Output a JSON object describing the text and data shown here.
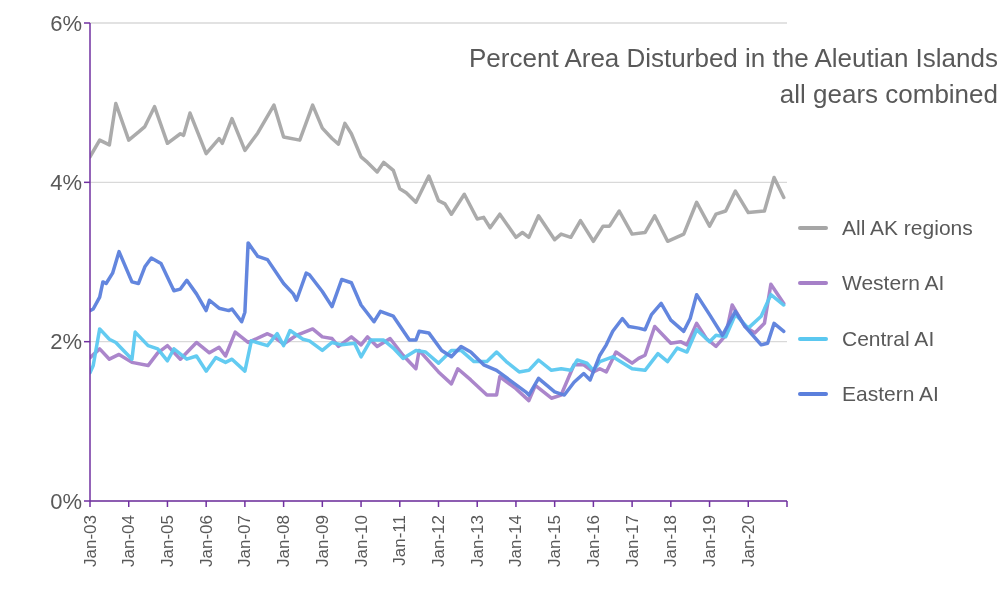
{
  "chart_data": {
    "type": "line",
    "title": "Percent Area Disturbed in the Aleutian Islands",
    "subtitle": "all gears combined",
    "xlim": [
      "2003-01",
      "2021-01"
    ],
    "xticks": [
      {
        "value": "2003-01",
        "label": "Jan-03"
      },
      {
        "value": "2004-01",
        "label": "Jan-04"
      },
      {
        "value": "2005-01",
        "label": "Jan-05"
      },
      {
        "value": "2006-01",
        "label": "Jan-06"
      },
      {
        "value": "2007-01",
        "label": "Jan-07"
      },
      {
        "value": "2008-01",
        "label": "Jan-08"
      },
      {
        "value": "2009-01",
        "label": "Jan-09"
      },
      {
        "value": "2010-01",
        "label": "Jan-10"
      },
      {
        "value": "2011-01",
        "label": "Jan-11"
      },
      {
        "value": "2012-01",
        "label": "Jan-12"
      },
      {
        "value": "2013-01",
        "label": "Jan-13"
      },
      {
        "value": "2014-01",
        "label": "Jan-14"
      },
      {
        "value": "2015-01",
        "label": "Jan-15"
      },
      {
        "value": "2016-01",
        "label": "Jan-16"
      },
      {
        "value": "2017-01",
        "label": "Jan-17"
      },
      {
        "value": "2018-01",
        "label": "Jan-18"
      },
      {
        "value": "2019-01",
        "label": "Jan-19"
      },
      {
        "value": "2020-01",
        "label": "Jan-20"
      },
      {
        "value": "2021-01",
        "label": null
      }
    ],
    "ylim": [
      0,
      6
    ],
    "yticks": [
      {
        "value": 0,
        "label": "0%"
      },
      {
        "value": 2,
        "label": "2%"
      },
      {
        "value": 4,
        "label": "4%"
      },
      {
        "value": 6,
        "label": "6%"
      }
    ],
    "grid": "y",
    "legend": "right",
    "marker": "none",
    "line_style": "solid",
    "series": [
      {
        "name": "All AK regions",
        "color": "#a6a6a6",
        "x": [
          "2003-01",
          "2003-04",
          "2003-07",
          "2003-09",
          "2004-01",
          "2004-04",
          "2004-06",
          "2004-09",
          "2005-01",
          "2005-05",
          "2005-06",
          "2005-08",
          "2006-01",
          "2006-05",
          "2006-06",
          "2006-09",
          "2007-01",
          "2007-05",
          "2007-10",
          "2008-01",
          "2008-06",
          "2008-10",
          "2009-01",
          "2009-04",
          "2009-06",
          "2009-08",
          "2009-10",
          "2010-01",
          "2010-03",
          "2010-06",
          "2010-08",
          "2010-11",
          "2011-01",
          "2011-03",
          "2011-06",
          "2011-10",
          "2012-01",
          "2012-03",
          "2012-05",
          "2012-09",
          "2013-01",
          "2013-03",
          "2013-05",
          "2013-08",
          "2014-01",
          "2014-03",
          "2014-05",
          "2014-08",
          "2015-01",
          "2015-03",
          "2015-06",
          "2015-09",
          "2016-01",
          "2016-04",
          "2016-06",
          "2016-09",
          "2017-01",
          "2017-05",
          "2017-08",
          "2017-12",
          "2018-05",
          "2018-09",
          "2019-01",
          "2019-03",
          "2019-06",
          "2019-09",
          "2020-01",
          "2020-06",
          "2020-09",
          "2020-12"
        ],
        "values": [
          4.32,
          4.53,
          4.47,
          4.99,
          4.53,
          4.63,
          4.7,
          4.95,
          4.49,
          4.61,
          4.59,
          4.87,
          4.36,
          4.55,
          4.49,
          4.8,
          4.4,
          4.62,
          4.97,
          4.57,
          4.53,
          4.97,
          4.68,
          4.55,
          4.48,
          4.74,
          4.61,
          4.32,
          4.25,
          4.13,
          4.25,
          4.15,
          3.92,
          3.87,
          3.75,
          4.08,
          3.77,
          3.73,
          3.6,
          3.85,
          3.54,
          3.56,
          3.43,
          3.6,
          3.31,
          3.37,
          3.31,
          3.58,
          3.28,
          3.35,
          3.31,
          3.52,
          3.26,
          3.45,
          3.45,
          3.64,
          3.35,
          3.37,
          3.58,
          3.26,
          3.35,
          3.75,
          3.45,
          3.6,
          3.64,
          3.89,
          3.62,
          3.64,
          4.06,
          3.81
        ]
      },
      {
        "name": "Western AI",
        "color": "#a680c8",
        "x": [
          "2003-01",
          "2003-04",
          "2003-07",
          "2003-10",
          "2004-02",
          "2004-07",
          "2004-10",
          "2005-01",
          "2005-05",
          "2005-10",
          "2006-02",
          "2006-05",
          "2006-07",
          "2006-10",
          "2007-02",
          "2007-08",
          "2007-10",
          "2008-01",
          "2008-05",
          "2008-10",
          "2009-01",
          "2009-04",
          "2009-06",
          "2009-10",
          "2010-01",
          "2010-03",
          "2010-06",
          "2010-10",
          "2011-02",
          "2011-06",
          "2011-07",
          "2012-01",
          "2012-05",
          "2012-07",
          "2012-11",
          "2013-04",
          "2013-07",
          "2013-08",
          "2014-01",
          "2014-05",
          "2014-07",
          "2014-12",
          "2015-03",
          "2015-07",
          "2015-10",
          "2016-01",
          "2016-03",
          "2016-05",
          "2016-08",
          "2017-01",
          "2017-03",
          "2017-05",
          "2017-08",
          "2018-01",
          "2018-04",
          "2018-06",
          "2018-09",
          "2018-12",
          "2019-03",
          "2019-06",
          "2019-08",
          "2019-12",
          "2020-03",
          "2020-06",
          "2020-08",
          "2020-12"
        ],
        "values": [
          1.8,
          1.91,
          1.78,
          1.84,
          1.74,
          1.7,
          1.86,
          1.95,
          1.78,
          1.99,
          1.86,
          1.93,
          1.82,
          2.12,
          1.99,
          2.1,
          2.06,
          1.97,
          2.08,
          2.16,
          2.06,
          2.04,
          1.94,
          2.06,
          1.96,
          2.06,
          1.94,
          2.04,
          1.83,
          1.66,
          1.89,
          1.62,
          1.47,
          1.66,
          1.52,
          1.33,
          1.33,
          1.56,
          1.41,
          1.26,
          1.45,
          1.29,
          1.33,
          1.71,
          1.71,
          1.62,
          1.66,
          1.62,
          1.87,
          1.73,
          1.79,
          1.83,
          2.19,
          1.98,
          2.0,
          1.96,
          2.23,
          2.04,
          1.94,
          2.08,
          2.46,
          2.19,
          2.11,
          2.23,
          2.72,
          2.48
        ]
      },
      {
        "name": "Central AI",
        "color": "#5bc8f0",
        "x": [
          "2003-01",
          "2003-02",
          "2003-04",
          "2003-07",
          "2003-09",
          "2004-02",
          "2004-03",
          "2004-07",
          "2004-10",
          "2005-01",
          "2005-03",
          "2005-07",
          "2005-10",
          "2006-01",
          "2006-04",
          "2006-07",
          "2006-09",
          "2007-01",
          "2007-03",
          "2007-08",
          "2007-11",
          "2008-01",
          "2008-03",
          "2008-07",
          "2008-09",
          "2009-01",
          "2009-04",
          "2009-07",
          "2009-11",
          "2010-01",
          "2010-04",
          "2010-08",
          "2010-11",
          "2011-02",
          "2011-06",
          "2011-09",
          "2012-01",
          "2012-05",
          "2012-08",
          "2012-12",
          "2013-04",
          "2013-07",
          "2013-10",
          "2014-02",
          "2014-05",
          "2014-08",
          "2014-12",
          "2015-03",
          "2015-06",
          "2015-08",
          "2015-11",
          "2016-01",
          "2016-03",
          "2016-07",
          "2017-01",
          "2017-05",
          "2017-09",
          "2017-12",
          "2018-03",
          "2018-06",
          "2018-09",
          "2019-01",
          "2019-03",
          "2019-06",
          "2019-09",
          "2020-01",
          "2020-05",
          "2020-08",
          "2020-12"
        ],
        "values": [
          1.61,
          1.7,
          2.16,
          2.03,
          1.99,
          1.78,
          2.12,
          1.95,
          1.91,
          1.76,
          1.91,
          1.78,
          1.82,
          1.63,
          1.8,
          1.74,
          1.78,
          1.63,
          2.01,
          1.95,
          2.1,
          1.95,
          2.14,
          2.03,
          2.01,
          1.89,
          1.99,
          1.96,
          1.98,
          1.81,
          2.02,
          2.02,
          1.92,
          1.79,
          1.89,
          1.87,
          1.73,
          1.89,
          1.89,
          1.75,
          1.75,
          1.87,
          1.75,
          1.62,
          1.64,
          1.77,
          1.64,
          1.66,
          1.64,
          1.77,
          1.73,
          1.64,
          1.75,
          1.81,
          1.66,
          1.64,
          1.85,
          1.75,
          1.92,
          1.87,
          2.15,
          2.0,
          2.08,
          2.06,
          2.34,
          2.17,
          2.32,
          2.59,
          2.46
        ]
      },
      {
        "name": "Eastern AI",
        "color": "#5b7fdc",
        "x": [
          "2003-01",
          "2003-02",
          "2003-04",
          "2003-05",
          "2003-06",
          "2003-08",
          "2003-10",
          "2004-02",
          "2004-04",
          "2004-06",
          "2004-08",
          "2004-11",
          "2005-03",
          "2005-05",
          "2005-07",
          "2005-10",
          "2006-01",
          "2006-02",
          "2006-05",
          "2006-08",
          "2006-09",
          "2006-12",
          "2007-01",
          "2007-02",
          "2007-05",
          "2007-08",
          "2008-01",
          "2008-04",
          "2008-05",
          "2008-08",
          "2008-09",
          "2009-01",
          "2009-04",
          "2009-07",
          "2009-10",
          "2010-01",
          "2010-05",
          "2010-07",
          "2010-11",
          "2011-04",
          "2011-06",
          "2011-07",
          "2011-10",
          "2012-02",
          "2012-05",
          "2012-08",
          "2012-11",
          "2013-03",
          "2013-07",
          "2013-12",
          "2014-04",
          "2014-05",
          "2014-08",
          "2015-01",
          "2015-04",
          "2015-07",
          "2015-10",
          "2015-12",
          "2016-03",
          "2016-05",
          "2016-07",
          "2016-10",
          "2016-12",
          "2017-03",
          "2017-05",
          "2017-07",
          "2017-10",
          "2018-01",
          "2018-05",
          "2018-07",
          "2018-09",
          "2019-01",
          "2019-05",
          "2019-09",
          "2019-12",
          "2020-05",
          "2020-07",
          "2020-09",
          "2020-12"
        ],
        "values": [
          2.39,
          2.41,
          2.56,
          2.75,
          2.73,
          2.86,
          3.13,
          2.75,
          2.73,
          2.94,
          3.05,
          2.98,
          2.64,
          2.66,
          2.77,
          2.6,
          2.39,
          2.52,
          2.42,
          2.39,
          2.41,
          2.25,
          2.37,
          3.24,
          3.07,
          3.03,
          2.73,
          2.6,
          2.52,
          2.86,
          2.84,
          2.63,
          2.44,
          2.78,
          2.74,
          2.46,
          2.25,
          2.38,
          2.32,
          2.02,
          2.02,
          2.13,
          2.11,
          1.89,
          1.81,
          1.94,
          1.87,
          1.71,
          1.64,
          1.49,
          1.37,
          1.33,
          1.54,
          1.37,
          1.33,
          1.49,
          1.6,
          1.52,
          1.83,
          1.96,
          2.13,
          2.29,
          2.19,
          2.17,
          2.15,
          2.34,
          2.48,
          2.27,
          2.13,
          2.29,
          2.59,
          2.34,
          2.08,
          2.38,
          2.19,
          1.96,
          1.98,
          2.23,
          2.13
        ]
      }
    ]
  }
}
